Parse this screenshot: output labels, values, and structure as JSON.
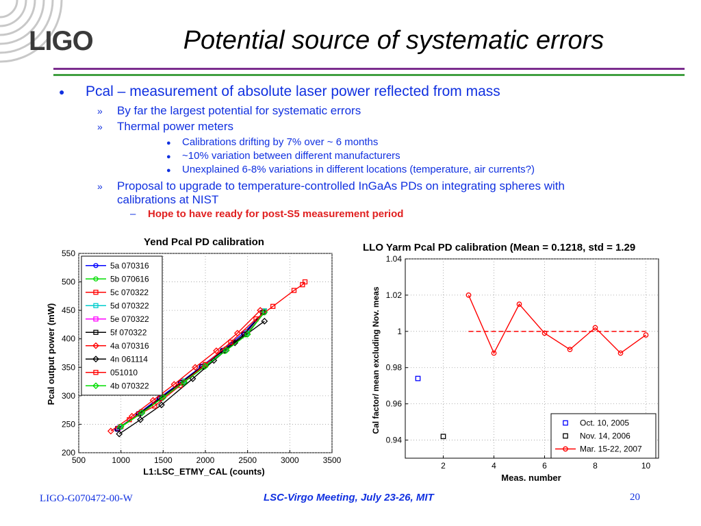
{
  "slide": {
    "logo_text": "LIGO",
    "title": "Potential source of systematic errors",
    "bullets": {
      "main": "Pcal – measurement of absolute laser power reflected from mass",
      "sub1": "By far the largest potential for systematic errors",
      "sub2": "Thermal power meters",
      "sub2_items": [
        "Calibrations drifting by 7% over ~ 6 months",
        "~10% variation between different manufacturers",
        "Unexplained 6-8% variations in different locations (temperature, air currents?)"
      ],
      "sub3_line1": "Proposal to upgrade to temperature-controlled InGaAs PDs on integrating spheres with",
      "sub3_line2": "calibrations at NIST",
      "sub3_item": "Hope to have ready for post-S5 measurement period"
    },
    "footer": {
      "doc_id": "LIGO-G070472-00-W",
      "meeting": "LSC-Virgo Meeting, July 23-26, MIT",
      "page": "20"
    },
    "colors": {
      "text_blue": "#1030e0",
      "emphasis_red": "#e02020",
      "rule_purple": "#7b2d8e",
      "rule_green": "#3f9f3f"
    }
  },
  "chart_data": [
    {
      "type": "line",
      "title": "Yend Pcal PD calibration",
      "xlabel": "L1:LSC_ETMY_CAL (counts)",
      "ylabel": "Pcal output power (mW)",
      "xlim": [
        500,
        3500
      ],
      "ylim": [
        200,
        550
      ],
      "xticks": [
        500,
        1000,
        1500,
        2000,
        2500,
        3000,
        3500
      ],
      "yticks": [
        200,
        250,
        300,
        350,
        400,
        450,
        500,
        550
      ],
      "grid": true,
      "legend": "top-left",
      "series": [
        {
          "name": "5a 070316",
          "color": "#0000ff",
          "marker": "circle",
          "x": [
            950,
            1200,
            1450,
            1700,
            1950,
            2200,
            2450,
            2700
          ],
          "y": [
            241,
            268,
            296,
            323,
            351,
            380,
            410,
            448
          ]
        },
        {
          "name": "5b 070616",
          "color": "#00dd00",
          "marker": "circle",
          "x": [
            980,
            1230,
            1480,
            1730,
            1980,
            2230,
            2480,
            2700
          ],
          "y": [
            243,
            268,
            295,
            322,
            350,
            378,
            407,
            446
          ]
        },
        {
          "name": "5c 070322",
          "color": "#ff0000",
          "marker": "square",
          "x": [
            1000,
            1250,
            1500,
            1750,
            2000,
            2250,
            2500,
            2700
          ],
          "y": [
            246,
            272,
            299,
            326,
            354,
            382,
            412,
            449
          ]
        },
        {
          "name": "5d 070322",
          "color": "#00cccc",
          "marker": "square",
          "x": [
            990,
            1240,
            1490,
            1740,
            1990,
            2240,
            2490,
            2700
          ],
          "y": [
            245,
            271,
            298,
            326,
            353,
            381,
            411,
            449
          ]
        },
        {
          "name": "5e 070322",
          "color": "#ff00ff",
          "marker": "square",
          "x": [
            970,
            1220,
            1470,
            1720,
            1970,
            2220,
            2470,
            2690
          ],
          "y": [
            243,
            269,
            296,
            324,
            352,
            380,
            409,
            447
          ]
        },
        {
          "name": "5f 070322",
          "color": "#000000",
          "marker": "square",
          "x": [
            960,
            1210,
            1460,
            1710,
            1960,
            2210,
            2460,
            2680
          ],
          "y": [
            242,
            268,
            295,
            323,
            351,
            379,
            408,
            446
          ]
        },
        {
          "name": "4a 070316",
          "color": "#ff0000",
          "marker": "diamond",
          "x": [
            880,
            1130,
            1380,
            1630,
            1880,
            2130,
            2380,
            2650
          ],
          "y": [
            238,
            264,
            292,
            320,
            350,
            379,
            410,
            450
          ]
        },
        {
          "name": "4n 061114",
          "color": "#000000",
          "marker": "diamond",
          "x": [
            980,
            1230,
            1480,
            1850,
            2100,
            2350,
            2700
          ],
          "y": [
            233,
            258,
            284,
            330,
            362,
            393,
            431
          ]
        },
        {
          "name": "051010",
          "color": "#ff0000",
          "marker": "square",
          "x": [
            1100,
            1400,
            1700,
            2000,
            2300,
            2600,
            2800,
            3050,
            3150,
            3180
          ],
          "y": [
            258,
            282,
            318,
            355,
            394,
            435,
            457,
            485,
            495,
            500
          ]
        },
        {
          "name": "4b 070322",
          "color": "#00dd00",
          "marker": "diamond",
          "x": [
            1000,
            1250,
            1500,
            1750,
            2000,
            2250,
            2500,
            2700
          ],
          "y": [
            246,
            270,
            297,
            324,
            352,
            380,
            408,
            447
          ]
        }
      ]
    },
    {
      "type": "line",
      "title": "LLO Yarm Pcal PD calibration (Mean = 0.1218, std = 1.29",
      "xlabel": "Meas. number",
      "ylabel": "Cal factor/ mean excluding Nov. meas",
      "xlim": [
        0.5,
        10.5
      ],
      "ylim": [
        0.93,
        1.04
      ],
      "xticks": [
        2,
        4,
        6,
        8,
        10
      ],
      "yticks": [
        0.94,
        0.96,
        0.98,
        1,
        1.02,
        1.04
      ],
      "ytick_labels": [
        "0.94",
        "0.96",
        "0.98",
        "1",
        "1.02",
        "1.04"
      ],
      "grid": true,
      "legend": "bottom-right",
      "mean_line": {
        "y": 1.0,
        "x": [
          3,
          10
        ],
        "color": "#ff0000",
        "style": "dashed"
      },
      "series": [
        {
          "name": "Oct. 10, 2005",
          "color": "#0000ff",
          "marker": "square",
          "line": false,
          "x": [
            1
          ],
          "y": [
            0.974
          ]
        },
        {
          "name": "Nov. 14, 2006",
          "color": "#000000",
          "marker": "square",
          "line": false,
          "x": [
            2
          ],
          "y": [
            0.942
          ]
        },
        {
          "name": "Mar. 15-22, 2007",
          "color": "#ff0000",
          "marker": "circle",
          "line": true,
          "x": [
            3,
            4,
            5,
            6,
            7,
            8,
            9,
            10
          ],
          "y": [
            1.02,
            0.988,
            1.015,
            0.999,
            0.99,
            1.002,
            0.988,
            0.998
          ]
        }
      ]
    }
  ]
}
